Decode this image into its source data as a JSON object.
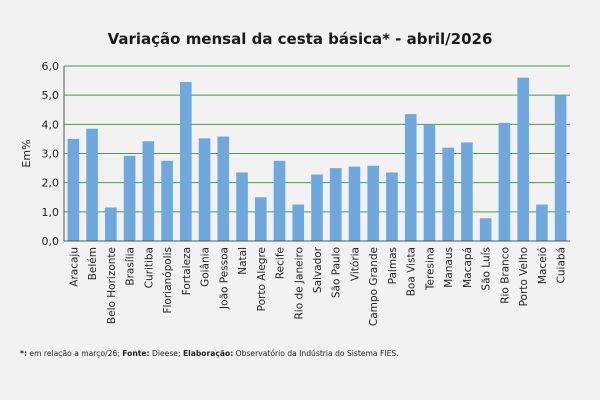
{
  "chart_data": {
    "type": "bar",
    "title": "Variação  mensal da cesta básica* - abril/2026",
    "ylabel": "Em%",
    "xlabel": "",
    "ylim": [
      0,
      6
    ],
    "yticks": [
      "0,0",
      "1,0",
      "2,0",
      "3,0",
      "4,0",
      "5,0",
      "6,0"
    ],
    "grid": true,
    "bar_color": "#6fa8dc",
    "grid_color": "#4a9a4a",
    "categories": [
      "Aracaju",
      "Belém",
      "Belo Horizonte",
      "Brasília",
      "Curitiba",
      "Florianópolis",
      "Fortaleza",
      "Goiânia",
      "João Pessoa",
      "Natal",
      "Porto Alegre",
      "Recife",
      "Rio de Janeiro",
      "Salvador",
      "São Paulo",
      "Vitória",
      "Campo Grande",
      "Palmas",
      "Boa Vista",
      "Teresina",
      "Manaus",
      "Macapá",
      "São Luís",
      "Rio Branco",
      "Porto Velho",
      "Maceió",
      "Cuiabá"
    ],
    "values": [
      3.5,
      3.85,
      1.15,
      2.92,
      3.42,
      2.75,
      5.45,
      3.52,
      3.58,
      2.35,
      1.5,
      2.75,
      1.25,
      2.28,
      2.5,
      2.55,
      2.58,
      2.35,
      4.35,
      4.0,
      3.2,
      3.38,
      0.78,
      4.05,
      5.6,
      1.25,
      5.0
    ]
  },
  "footnote": {
    "star": "*:",
    "star_text": " em relação a março/26; ",
    "source_label": "Fonte:",
    "source_text": " Dieese; ",
    "elab_label": "Elaboração:",
    "elab_text": " Observatório da Indústria do Sistema FIES."
  }
}
